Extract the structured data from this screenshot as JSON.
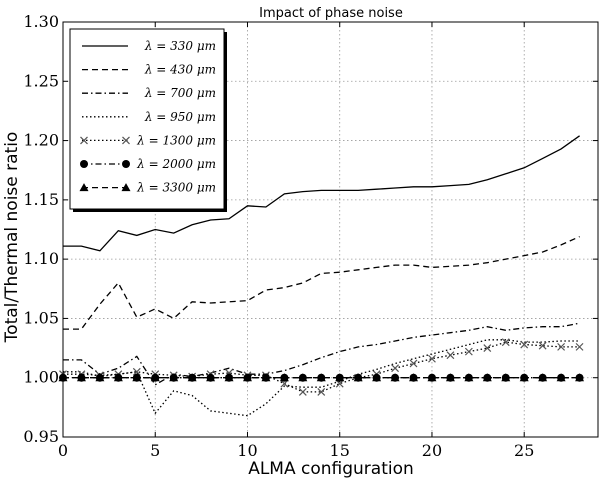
{
  "chart_data": {
    "type": "line",
    "title": "Impact of phase noise",
    "xlabel": "ALMA configuration",
    "ylabel": "Total/Thermal noise ratio",
    "xlim": [
      0,
      29
    ],
    "ylim": [
      0.95,
      1.3
    ],
    "xticks": [
      0,
      5,
      10,
      15,
      20,
      25
    ],
    "yticks": [
      0.95,
      1.0,
      1.05,
      1.1,
      1.15,
      1.2,
      1.25,
      1.3
    ],
    "ytick_labels": [
      "0.95",
      "1.00",
      "1.05",
      "1.10",
      "1.15",
      "1.20",
      "1.25",
      "1.30"
    ],
    "grid": true,
    "legend_position": "top-left",
    "series": [
      {
        "name": "λ = 330 μm",
        "style": "solid",
        "marker": "none",
        "x": [
          0,
          1,
          2,
          3,
          4,
          5,
          6,
          7,
          8,
          9,
          10,
          11,
          12,
          13,
          14,
          15,
          16,
          17,
          18,
          19,
          20,
          21,
          22,
          23,
          24,
          25,
          26,
          27,
          28
        ],
        "values": [
          1.111,
          1.111,
          1.107,
          1.124,
          1.12,
          1.125,
          1.122,
          1.129,
          1.133,
          1.134,
          1.145,
          1.144,
          1.155,
          1.157,
          1.158,
          1.158,
          1.158,
          1.159,
          1.16,
          1.161,
          1.161,
          1.162,
          1.163,
          1.167,
          1.172,
          1.177,
          1.185,
          1.193,
          1.204
        ]
      },
      {
        "name": "λ = 430 μm",
        "style": "dashed",
        "marker": "none",
        "x": [
          0,
          1,
          2,
          3,
          4,
          5,
          6,
          7,
          8,
          9,
          10,
          11,
          12,
          13,
          14,
          15,
          16,
          17,
          18,
          19,
          20,
          21,
          22,
          23,
          24,
          25,
          26,
          27,
          28
        ],
        "values": [
          1.041,
          1.041,
          1.062,
          1.08,
          1.051,
          1.058,
          1.05,
          1.064,
          1.063,
          1.064,
          1.065,
          1.074,
          1.076,
          1.08,
          1.088,
          1.089,
          1.091,
          1.093,
          1.095,
          1.095,
          1.093,
          1.094,
          1.095,
          1.097,
          1.1,
          1.103,
          1.106,
          1.112,
          1.119
        ]
      },
      {
        "name": "λ = 700 μm",
        "style": "dashdot",
        "marker": "none",
        "x": [
          0,
          1,
          2,
          3,
          4,
          5,
          6,
          7,
          8,
          9,
          10,
          11,
          12,
          13,
          14,
          15,
          16,
          17,
          18,
          19,
          20,
          21,
          22,
          23,
          24,
          25,
          26,
          27,
          28
        ],
        "values": [
          1.015,
          1.015,
          1.003,
          1.008,
          1.018,
          0.994,
          1.003,
          1.001,
          1.004,
          1.008,
          1.003,
          1.003,
          1.006,
          1.011,
          1.017,
          1.022,
          1.026,
          1.028,
          1.031,
          1.034,
          1.036,
          1.038,
          1.04,
          1.043,
          1.04,
          1.042,
          1.043,
          1.043,
          1.046
        ]
      },
      {
        "name": "λ = 950 μm",
        "style": "dotted",
        "marker": "none",
        "x": [
          0,
          1,
          2,
          3,
          4,
          5,
          6,
          7,
          8,
          9,
          10,
          11,
          12,
          13,
          14,
          15,
          16,
          17,
          18,
          19,
          20,
          21,
          22,
          23,
          24,
          25,
          26,
          27,
          28
        ],
        "values": [
          1.005,
          1.005,
          1.001,
          1.003,
          1.005,
          0.97,
          0.989,
          0.985,
          0.972,
          0.97,
          0.968,
          0.978,
          0.993,
          0.992,
          0.992,
          0.997,
          1.003,
          1.007,
          1.012,
          1.016,
          1.02,
          1.024,
          1.028,
          1.032,
          1.032,
          1.03,
          1.03,
          1.031,
          1.031
        ]
      },
      {
        "name": "λ = 1300 μm",
        "style": "dotted",
        "marker": "x",
        "x": [
          0,
          1,
          2,
          3,
          4,
          5,
          6,
          7,
          8,
          9,
          10,
          11,
          12,
          13,
          14,
          15,
          16,
          17,
          18,
          19,
          20,
          21,
          22,
          23,
          24,
          25,
          26,
          27,
          28
        ],
        "values": [
          1.003,
          1.003,
          1.002,
          1.003,
          1.005,
          1.003,
          1.002,
          1.001,
          1.003,
          1.004,
          1.002,
          1.002,
          0.995,
          0.988,
          0.988,
          0.995,
          1.0,
          1.003,
          1.008,
          1.012,
          1.016,
          1.019,
          1.022,
          1.025,
          1.03,
          1.028,
          1.027,
          1.026,
          1.026
        ]
      },
      {
        "name": "λ = 2000 μm",
        "style": "dashdot",
        "marker": "circle",
        "x": [
          0,
          1,
          2,
          3,
          4,
          5,
          6,
          7,
          8,
          9,
          10,
          11,
          12,
          13,
          14,
          15,
          16,
          17,
          18,
          19,
          20,
          21,
          22,
          23,
          24,
          25,
          26,
          27,
          28
        ],
        "values": [
          1.0,
          1.0,
          1.0,
          1.0,
          1.0,
          1.0,
          1.0,
          1.0,
          1.0,
          1.0,
          1.0,
          1.0,
          1.0,
          1.0,
          1.0,
          1.0,
          1.0,
          1.0,
          1.0,
          1.0,
          1.0,
          1.0,
          1.0,
          1.0,
          1.0,
          1.0,
          1.0,
          1.0,
          1.0
        ]
      },
      {
        "name": "λ = 3300 μm",
        "style": "dashed",
        "marker": "triangle",
        "x": [
          0,
          1,
          2,
          3,
          4,
          5,
          6,
          7,
          8,
          9,
          10,
          11,
          12,
          13,
          14,
          15,
          16,
          17,
          18,
          19,
          20,
          21,
          22,
          23,
          24,
          25,
          26,
          27,
          28
        ],
        "values": [
          1.0,
          1.0,
          1.0,
          1.0,
          1.0,
          1.0,
          1.0,
          1.0,
          1.0,
          1.0,
          1.0,
          1.0,
          1.0,
          1.0,
          1.0,
          1.0,
          1.0,
          1.0,
          1.0,
          1.0,
          1.0,
          1.0,
          1.0,
          1.0,
          1.0,
          1.0,
          1.0,
          1.0,
          1.0
        ]
      }
    ]
  }
}
